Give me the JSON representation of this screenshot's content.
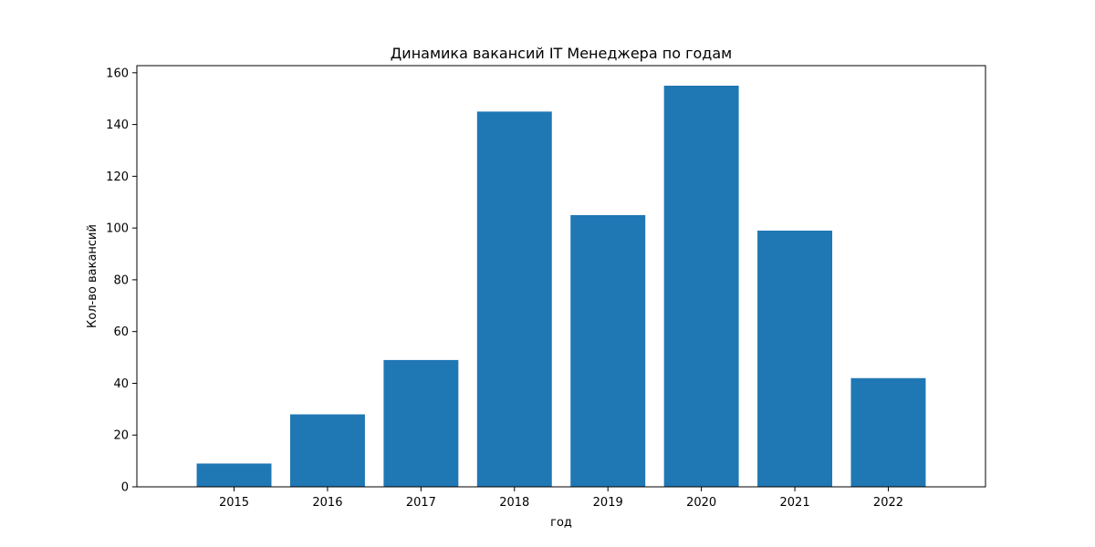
{
  "chart_data": {
    "type": "bar",
    "title": "Динамика вакансий IT Менеджера по годам",
    "xlabel": "год",
    "ylabel": "Кол-во вакансий",
    "categories": [
      "2015",
      "2016",
      "2017",
      "2018",
      "2019",
      "2020",
      "2021",
      "2022"
    ],
    "values": [
      9,
      28,
      49,
      145,
      105,
      155,
      99,
      42
    ],
    "ylim": [
      0,
      162.75
    ],
    "yticks": [
      0,
      20,
      40,
      60,
      80,
      100,
      120,
      140,
      160
    ],
    "bar_color": "#1f77b4",
    "grid": false,
    "legend": "none"
  }
}
